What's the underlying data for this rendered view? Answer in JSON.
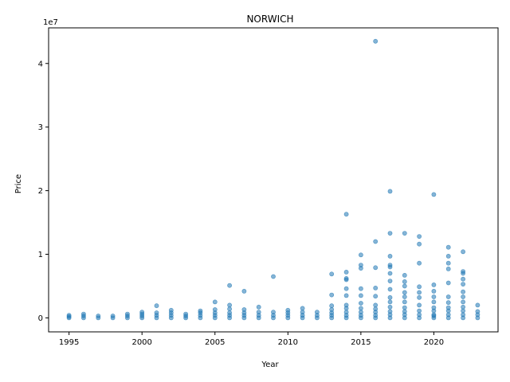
{
  "chart_data": {
    "type": "scatter",
    "title": "NORWICH",
    "xlabel": "Year",
    "ylabel": "Price",
    "y_offset_label": "1e7",
    "xlim": [
      1993.6,
      2024.4
    ],
    "ylim": [
      -2.2,
      45.6
    ],
    "x_ticks": [
      1995,
      2000,
      2005,
      2010,
      2015,
      2020
    ],
    "x_tick_labels": [
      "1995",
      "2000",
      "2005",
      "2010",
      "2015",
      "2020"
    ],
    "y_ticks": [
      0,
      1,
      2,
      3,
      4
    ],
    "y_tick_labels": [
      "0",
      "1",
      "2",
      "3",
      "4"
    ],
    "marker_color": "#1f77b4",
    "grid": false,
    "series": [
      {
        "x": [
          1995,
          1995,
          1995,
          1996,
          1996,
          1996,
          1997,
          1997,
          1998,
          1998,
          1999,
          1999,
          1999,
          2000,
          2000,
          2000,
          2000,
          2001,
          2001,
          2001,
          2001,
          2002,
          2002,
          2002,
          2002,
          2003,
          2003,
          2003,
          2004,
          2004,
          2004,
          2004,
          2005,
          2005,
          2005,
          2005,
          2005,
          2006,
          2006,
          2006,
          2006,
          2006,
          2006,
          2007,
          2007,
          2007,
          2007,
          2007,
          2008,
          2008,
          2008,
          2008,
          2009,
          2009,
          2009,
          2009,
          2010,
          2010,
          2010,
          2010,
          2011,
          2011,
          2011,
          2011,
          2012,
          2012,
          2012,
          2013,
          2013,
          2013,
          2013,
          2013,
          2013,
          2013,
          2014,
          2014,
          2014,
          2014,
          2014,
          2014,
          2014,
          2014,
          2014,
          2014,
          2014,
          2015,
          2015,
          2015,
          2015,
          2015,
          2015,
          2015,
          2015,
          2015,
          2015,
          2016,
          2016,
          2016,
          2016,
          2016,
          2016,
          2016,
          2016,
          2016,
          2016,
          2017,
          2017,
          2017,
          2017,
          2017,
          2017,
          2017,
          2017,
          2017,
          2017,
          2017,
          2017,
          2017,
          2017,
          2018,
          2018,
          2018,
          2018,
          2018,
          2018,
          2018,
          2018,
          2018,
          2018,
          2018,
          2019,
          2019,
          2019,
          2019,
          2019,
          2019,
          2019,
          2019,
          2019,
          2019,
          2020,
          2020,
          2020,
          2020,
          2020,
          2020,
          2020,
          2020,
          2020,
          2020,
          2021,
          2021,
          2021,
          2021,
          2021,
          2021,
          2021,
          2021,
          2021,
          2021,
          2021,
          2022,
          2022,
          2022,
          2022,
          2022,
          2022,
          2022,
          2022,
          2022,
          2022,
          2022,
          2022,
          2023,
          2023,
          2023,
          2023
        ],
        "y": [
          0.0,
          0.2,
          0.4,
          0.0,
          0.3,
          0.6,
          0.0,
          0.3,
          0.0,
          0.3,
          0.0,
          0.3,
          0.6,
          0.0,
          0.3,
          0.6,
          0.9,
          0.0,
          0.4,
          0.8,
          1.9,
          0.0,
          0.4,
          0.8,
          1.2,
          0.0,
          0.3,
          0.6,
          0.0,
          0.4,
          0.8,
          1.1,
          0.0,
          0.4,
          0.8,
          1.3,
          2.5,
          0.0,
          0.4,
          0.8,
          1.4,
          2.0,
          5.1,
          0.0,
          0.4,
          0.8,
          1.3,
          4.2,
          0.0,
          0.4,
          0.9,
          1.7,
          0.0,
          0.4,
          0.9,
          6.5,
          0.0,
          0.4,
          0.8,
          1.2,
          0.0,
          0.4,
          0.9,
          1.5,
          0.0,
          0.4,
          0.9,
          0.0,
          0.4,
          0.8,
          1.3,
          1.9,
          3.6,
          6.9,
          0.0,
          0.4,
          0.9,
          1.5,
          2.0,
          3.5,
          4.6,
          6.0,
          6.2,
          7.2,
          16.3,
          0.0,
          0.4,
          0.9,
          1.5,
          2.3,
          3.5,
          4.6,
          8.3,
          7.8,
          9.9,
          0.0,
          0.4,
          0.9,
          1.4,
          2.0,
          3.4,
          4.7,
          7.9,
          12.0,
          43.5,
          0.0,
          0.5,
          1.0,
          1.7,
          2.5,
          3.2,
          4.5,
          5.8,
          7.0,
          8.0,
          8.3,
          9.7,
          13.3,
          19.9,
          0.0,
          0.5,
          1.0,
          1.6,
          2.5,
          3.3,
          4.0,
          5.0,
          5.7,
          6.7,
          13.3,
          0.0,
          0.5,
          1.1,
          2.0,
          3.2,
          4.0,
          4.9,
          8.6,
          11.6,
          12.8,
          0.0,
          0.5,
          1.1,
          1.6,
          2.5,
          3.3,
          4.2,
          5.2,
          19.4,
          0.3,
          0.0,
          0.5,
          1.1,
          1.6,
          2.4,
          3.3,
          5.5,
          7.7,
          8.6,
          9.7,
          11.1,
          0.0,
          0.5,
          1.1,
          1.7,
          2.5,
          3.3,
          4.1,
          5.3,
          6.1,
          7.0,
          7.3,
          10.4,
          0.0,
          0.5,
          1.0,
          2.0
        ]
      }
    ]
  }
}
